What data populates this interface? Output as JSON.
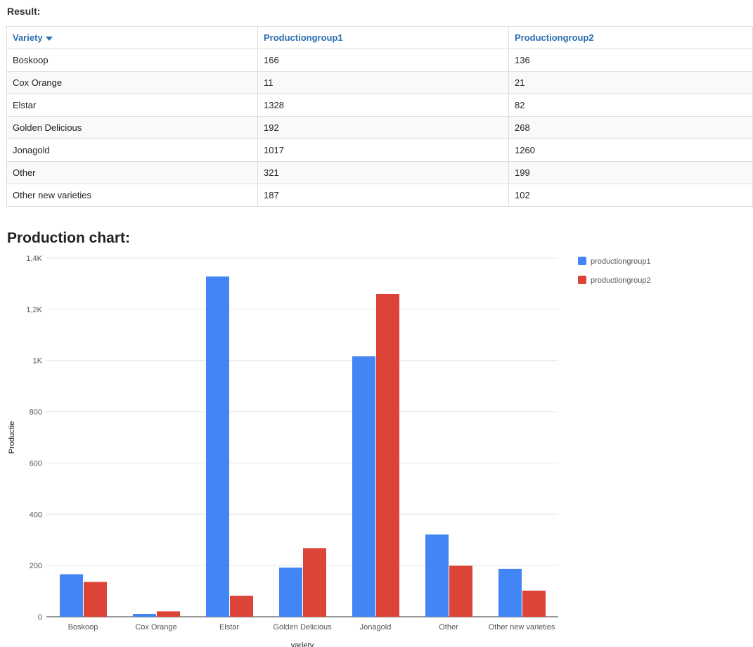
{
  "result": {
    "heading": "Result:",
    "columns": [
      "Variety",
      "Productiongroup1",
      "Productiongroup2"
    ],
    "sort_column": "Variety",
    "rows": [
      [
        "Boskoop",
        "166",
        "136"
      ],
      [
        "Cox Orange",
        "11",
        "21"
      ],
      [
        "Elstar",
        "1328",
        "82"
      ],
      [
        "Golden Delicious",
        "192",
        "268"
      ],
      [
        "Jonagold",
        "1017",
        "1260"
      ],
      [
        "Other",
        "321",
        "199"
      ],
      [
        "Other new varieties",
        "187",
        "102"
      ]
    ]
  },
  "chart_heading": "Production chart:",
  "chart_data": {
    "type": "bar",
    "categories": [
      "Boskoop",
      "Cox Orange",
      "Elstar",
      "Golden Delicious",
      "Jonagold",
      "Other",
      "Other new varieties"
    ],
    "series": [
      {
        "name": "productiongroup1",
        "color": "#4285f4",
        "values": [
          166,
          11,
          1328,
          192,
          1017,
          321,
          187
        ]
      },
      {
        "name": "productiongroup2",
        "color": "#db4437",
        "values": [
          136,
          21,
          82,
          268,
          1260,
          199,
          102
        ]
      }
    ],
    "xlabel": "variety",
    "ylabel": "Productie",
    "ylim": [
      0,
      1400
    ],
    "yticks": [
      0,
      200,
      400,
      600,
      800,
      1000,
      1200,
      1400
    ],
    "ytick_labels": [
      "0",
      "200",
      "400",
      "600",
      "800",
      "1K",
      "1,2K",
      "1,4K"
    ],
    "grid": true,
    "legend_position": "right"
  }
}
